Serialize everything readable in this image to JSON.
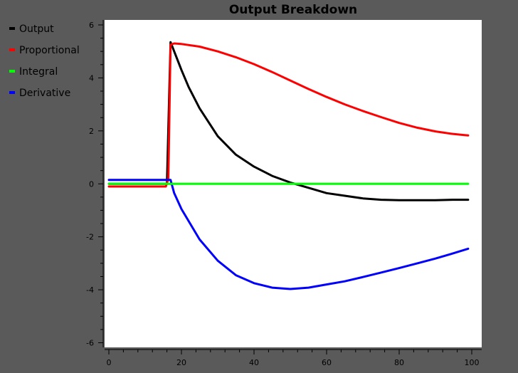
{
  "chart_data": {
    "type": "line",
    "title": "Output Breakdown",
    "xlabel": "",
    "ylabel": "",
    "xlim": [
      0,
      100
    ],
    "ylim": [
      -6,
      6
    ],
    "xticks": [
      0,
      20,
      40,
      60,
      80,
      100
    ],
    "yticks": [
      -6,
      -4,
      -2,
      0,
      2,
      4,
      6
    ],
    "grid": false,
    "legend": "top-left",
    "series": [
      {
        "name": "Output",
        "color": "#000000",
        "x": [
          0,
          16,
          17,
          18,
          20,
          22,
          25,
          30,
          35,
          40,
          45,
          50,
          55,
          60,
          65,
          70,
          75,
          80,
          85,
          90,
          95,
          99
        ],
        "y": [
          0,
          0,
          5.35,
          5.0,
          4.3,
          3.65,
          2.85,
          1.8,
          1.1,
          0.65,
          0.3,
          0.05,
          -0.15,
          -0.35,
          -0.45,
          -0.55,
          -0.6,
          -0.62,
          -0.62,
          -0.62,
          -0.6,
          -0.6
        ]
      },
      {
        "name": "Proportional",
        "color": "#ff0000",
        "x": [
          0,
          15.7,
          16.4,
          17,
          18,
          20,
          25,
          30,
          35,
          40,
          45,
          50,
          55,
          60,
          65,
          70,
          75,
          80,
          85,
          90,
          95,
          99
        ],
        "y": [
          -0.1,
          -0.1,
          0.2,
          5.25,
          5.3,
          5.28,
          5.18,
          5.0,
          4.78,
          4.52,
          4.22,
          3.9,
          3.58,
          3.28,
          3.0,
          2.75,
          2.52,
          2.3,
          2.12,
          1.98,
          1.88,
          1.83
        ]
      },
      {
        "name": "Integral",
        "color": "#00ff00",
        "x": [
          0,
          16,
          17,
          99
        ],
        "y": [
          0,
          0,
          0,
          0
        ]
      },
      {
        "name": "Derivative",
        "color": "#0000ff",
        "x": [
          0,
          16,
          17,
          18,
          20,
          25,
          30,
          35,
          40,
          45,
          50,
          55,
          60,
          65,
          70,
          75,
          80,
          85,
          90,
          95,
          99
        ],
        "y": [
          0.15,
          0.15,
          0.15,
          -0.35,
          -0.95,
          -2.1,
          -2.9,
          -3.45,
          -3.75,
          -3.92,
          -3.97,
          -3.92,
          -3.8,
          -3.68,
          -3.52,
          -3.35,
          -3.18,
          -3.0,
          -2.82,
          -2.62,
          -2.45
        ]
      }
    ]
  }
}
